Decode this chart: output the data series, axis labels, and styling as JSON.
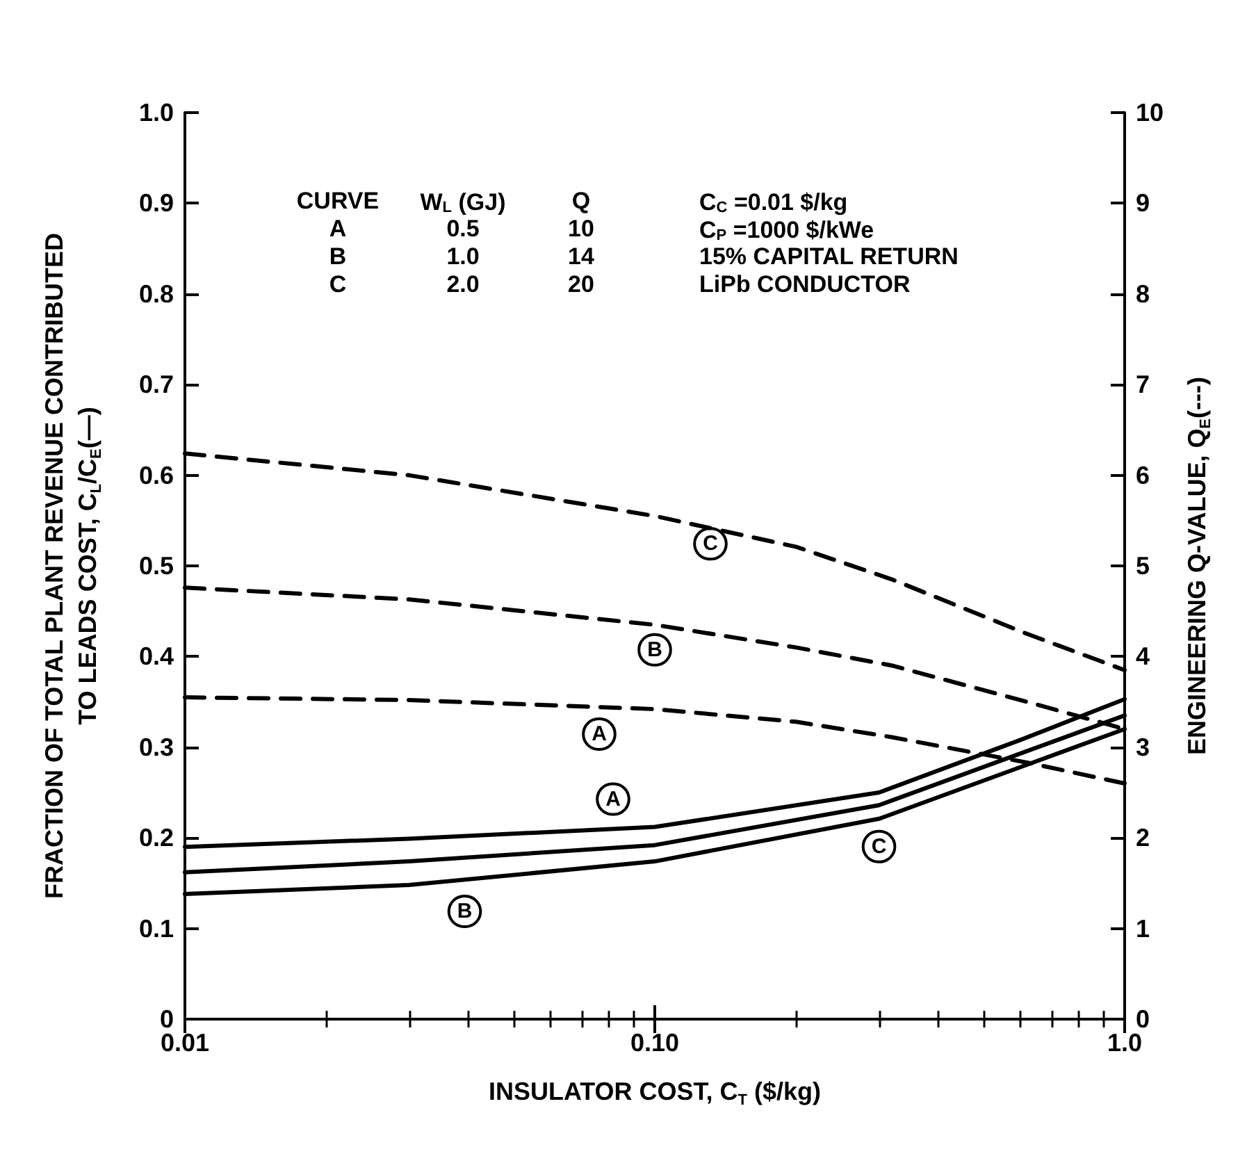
{
  "chart_data": {
    "type": "line",
    "xlabel": "INSULATOR COST, C$_{T}$ ($/kg)",
    "ylabel": "FRACTION OF TOTAL PLANT REVENUE CONTRIBUTED\nTO LEADS COST, C$_{L}$/C$_{E}$(—)",
    "y2label": "ENGINEERING Q-VALUE, Q$_{E}$(---)",
    "log": "x",
    "xlim": [
      0.01,
      1
    ],
    "xticks": [
      0.01,
      {
        "value": 0.1,
        "label": "0.10"
      },
      {
        "value": 1,
        "label": "1.0"
      }
    ],
    "ylim": [
      0,
      1
    ],
    "yticks": [
      0,
      0.1,
      0.2,
      0.3,
      0.4,
      0.5,
      0.6,
      0.7,
      0.8,
      0.9,
      {
        "value": 1,
        "label": "1.0"
      }
    ],
    "y2lim": [
      0,
      10
    ],
    "y2ticks": [
      0,
      1,
      2,
      3,
      4,
      5,
      6,
      7,
      8,
      9,
      10
    ],
    "grid": false,
    "legend": false,
    "marker": "none",
    "annotations": [
      "CURVE   W$_{L}$ (GJ)   Q",
      "A   0.5   10",
      "B   1.0   14",
      "C   2.0   20",
      "C$_{C}$ =0.01 $/kg",
      "C$_{P}$ =1000 $/kWe",
      "15% CAPITAL RETURN",
      "LiPb CONDUCTOR"
    ],
    "series": [
      {
        "name": "A",
        "color": "#000000",
        "line_style": "solid",
        "x": [
          0.01,
          0.03,
          0.1,
          0.3,
          0.6,
          1.0
        ],
        "values": [
          0.19,
          0.199,
          0.212,
          0.25,
          0.308,
          0.353
        ]
      },
      {
        "name": "B",
        "color": "#000000",
        "line_style": "solid",
        "x": [
          0.01,
          0.03,
          0.1,
          0.3,
          0.6,
          1.0
        ],
        "values": [
          0.162,
          0.174,
          0.192,
          0.236,
          0.293,
          0.335
        ]
      },
      {
        "name": "C",
        "color": "#000000",
        "line_style": "solid",
        "x": [
          0.01,
          0.03,
          0.1,
          0.3,
          0.6,
          1.0
        ],
        "values": [
          0.138,
          0.148,
          0.174,
          0.221,
          0.278,
          0.32
        ]
      },
      {
        "name": "A",
        "color": "#000000",
        "line_style": "dashed",
        "axis": "y2",
        "x": [
          0.01,
          0.03,
          0.1,
          0.2,
          0.32,
          0.62,
          1.0
        ],
        "values": [
          3.55,
          3.52,
          3.42,
          3.28,
          3.11,
          2.83,
          2.6
        ]
      },
      {
        "name": "B",
        "color": "#000000",
        "line_style": "dashed",
        "axis": "y2",
        "x": [
          0.01,
          0.03,
          0.1,
          0.2,
          0.32,
          0.62,
          1.0
        ],
        "values": [
          4.76,
          4.63,
          4.35,
          4.1,
          3.9,
          3.5,
          3.2
        ]
      },
      {
        "name": "C",
        "color": "#000000",
        "line_style": "dashed",
        "axis": "y2",
        "x": [
          0.01,
          0.03,
          0.1,
          0.2,
          0.32,
          0.62,
          1.0
        ],
        "values": [
          6.24,
          6.0,
          5.55,
          5.21,
          4.85,
          4.25,
          3.85
        ]
      }
    ]
  }
}
